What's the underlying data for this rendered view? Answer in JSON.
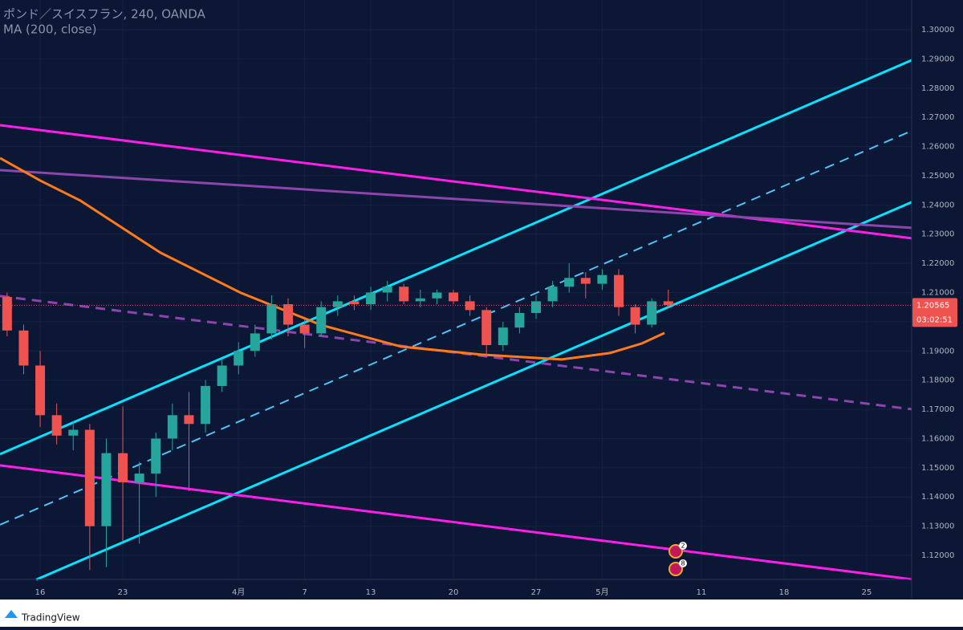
{
  "header": {
    "title": "ポンド／スイスフラン, 240, OANDA",
    "indicator": "MA (200, close)"
  },
  "footer": {
    "brand": "TradingView"
  },
  "chart_data": {
    "type": "candlestick",
    "xlim": [
      -2.43,
      52.72
    ],
    "ylim": [
      1.11176,
      1.31016
    ],
    "xticks": [
      {
        "value": 0,
        "label": "16"
      },
      {
        "value": 5,
        "label": "23"
      },
      {
        "value": 12,
        "label": "4月"
      },
      {
        "value": 16,
        "label": "7"
      },
      {
        "value": 20,
        "label": "13"
      },
      {
        "value": 25,
        "label": "20"
      },
      {
        "value": 30,
        "label": "27"
      },
      {
        "value": 34,
        "label": "5月"
      },
      {
        "value": 40,
        "label": "11"
      },
      {
        "value": 45,
        "label": "18"
      },
      {
        "value": 50,
        "label": "25"
      }
    ],
    "yticks": [
      {
        "value": 1.12,
        "label": "1.12000"
      },
      {
        "value": 1.13,
        "label": "1.13000"
      },
      {
        "value": 1.14,
        "label": "1.14000"
      },
      {
        "value": 1.15,
        "label": "1.15000"
      },
      {
        "value": 1.16,
        "label": "1.16000"
      },
      {
        "value": 1.17,
        "label": "1.17000"
      },
      {
        "value": 1.18,
        "label": "1.18000"
      },
      {
        "value": 1.19,
        "label": "1.19000"
      },
      {
        "value": 1.2,
        "label": "1.20000"
      },
      {
        "value": 1.21,
        "label": "1.21000"
      },
      {
        "value": 1.22,
        "label": "1.22000"
      },
      {
        "value": 1.23,
        "label": "1.23000"
      },
      {
        "value": 1.24,
        "label": "1.24000"
      },
      {
        "value": 1.25,
        "label": "1.25000"
      },
      {
        "value": 1.26,
        "label": "1.26000"
      },
      {
        "value": 1.27,
        "label": "1.27000"
      },
      {
        "value": 1.28,
        "label": "1.28000"
      },
      {
        "value": 1.29,
        "label": "1.29000"
      },
      {
        "value": 1.3,
        "label": "1.30000"
      }
    ],
    "grid": true,
    "up_color": "#26a69a",
    "down_color": "#ef5350",
    "candles": {
      "x": [
        -2,
        -1,
        0,
        1,
        2,
        3,
        4,
        5,
        6,
        7,
        8,
        9,
        10,
        11,
        12,
        13,
        14,
        15,
        16,
        17,
        18,
        19,
        20,
        21,
        22,
        23,
        24,
        25,
        26,
        27,
        28,
        29,
        30,
        31,
        32,
        33,
        34,
        35,
        36,
        37,
        38
      ],
      "open": [
        1.2085,
        1.197,
        1.185,
        1.168,
        1.161,
        1.163,
        1.13,
        1.155,
        1.145,
        1.148,
        1.16,
        1.168,
        1.165,
        1.178,
        1.185,
        1.19,
        1.196,
        1.206,
        1.199,
        1.196,
        1.205,
        1.207,
        1.206,
        1.21,
        1.212,
        1.207,
        1.208,
        1.21,
        1.207,
        1.204,
        1.192,
        1.198,
        1.203,
        1.207,
        1.212,
        1.215,
        1.213,
        1.216,
        1.205,
        1.199,
        1.207
      ],
      "high": [
        1.21,
        1.199,
        1.19,
        1.172,
        1.166,
        1.165,
        1.16,
        1.171,
        1.152,
        1.162,
        1.172,
        1.176,
        1.18,
        1.187,
        1.193,
        1.199,
        1.209,
        1.208,
        1.201,
        1.207,
        1.209,
        1.209,
        1.212,
        1.214,
        1.213,
        1.211,
        1.211,
        1.211,
        1.209,
        1.205,
        1.2,
        1.205,
        1.209,
        1.214,
        1.22,
        1.217,
        1.218,
        1.218,
        1.206,
        1.208,
        1.211
      ],
      "low": [
        1.195,
        1.182,
        1.164,
        1.158,
        1.156,
        1.115,
        1.116,
        1.125,
        1.124,
        1.14,
        1.156,
        1.142,
        1.162,
        1.176,
        1.182,
        1.188,
        1.194,
        1.195,
        1.191,
        1.195,
        1.202,
        1.204,
        1.204,
        1.207,
        1.206,
        1.205,
        1.206,
        1.206,
        1.202,
        1.188,
        1.19,
        1.196,
        1.201,
        1.205,
        1.21,
        1.208,
        1.211,
        1.202,
        1.196,
        1.198,
        1.205
      ],
      "close": [
        1.197,
        1.185,
        1.168,
        1.161,
        1.163,
        1.13,
        1.155,
        1.145,
        1.148,
        1.16,
        1.168,
        1.165,
        1.178,
        1.185,
        1.19,
        1.196,
        1.206,
        1.199,
        1.196,
        1.205,
        1.207,
        1.206,
        1.21,
        1.212,
        1.207,
        1.208,
        1.21,
        1.207,
        1.204,
        1.192,
        1.198,
        1.203,
        1.207,
        1.212,
        1.215,
        1.213,
        1.216,
        1.205,
        1.199,
        1.207,
        1.2057
      ]
    },
    "lines": [
      {
        "color": "#00e5ff",
        "dash": false,
        "width": 3,
        "x": [
          -2.43,
          52.72
        ],
        "y": [
          1.15467,
          1.28956
        ]
      },
      {
        "color": "#00e5ff",
        "dash": false,
        "width": 3,
        "x": [
          -0.24,
          52.72
        ],
        "y": [
          1.11168,
          1.24093
        ]
      },
      {
        "color": "#4fc3f7",
        "dash": true,
        "width": 2,
        "x": [
          -2.43,
          52.72
        ],
        "y": [
          1.13049,
          1.26538
        ]
      },
      {
        "color": "#ff1ee8",
        "dash": false,
        "width": 3,
        "x": [
          -2.43,
          52.72
        ],
        "y": [
          1.26731,
          1.22857
        ]
      },
      {
        "color": "#ff1ee8",
        "dash": false,
        "width": 3,
        "x": [
          -2.43,
          52.72
        ],
        "y": [
          1.15082,
          1.11181
        ]
      },
      {
        "color": "#8e44ad",
        "dash": false,
        "width": 3,
        "x": [
          -2.43,
          52.72
        ],
        "y": [
          1.25192,
          1.23214
        ]
      },
      {
        "color": "#8e44ad",
        "dash": true,
        "width": 3,
        "x": [
          -2.43,
          52.72
        ],
        "y": [
          1.20879,
          1.17005
        ]
      }
    ],
    "ma": {
      "color": "#ff7a1a",
      "x": [
        -2.43,
        0,
        2.43,
        7.28,
        12.14,
        16.99,
        21.84,
        26.7,
        31.55,
        34.47,
        36.41,
        37.77
      ],
      "y": [
        1.25604,
        1.24835,
        1.24148,
        1.22363,
        1.20989,
        1.1989,
        1.19148,
        1.18874,
        1.18709,
        1.18929,
        1.19258,
        1.19615
      ]
    },
    "last_price": {
      "value": 1.20565,
      "label": "1.20565",
      "timer": "03:02:51"
    },
    "events": [
      {
        "label": "2"
      },
      {
        "label": "8"
      }
    ]
  }
}
